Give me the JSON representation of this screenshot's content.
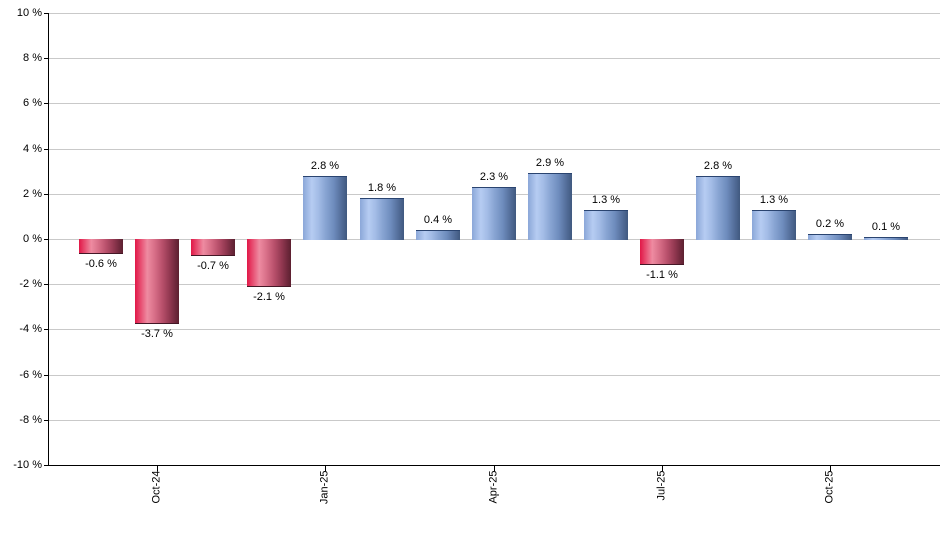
{
  "chart_data": {
    "type": "bar",
    "title": "",
    "unit": "%",
    "grid": true,
    "legend": false,
    "bars": [
      {
        "value": -0.6,
        "label": "-0.6 %"
      },
      {
        "value": -3.7,
        "label": "-3.7 %"
      },
      {
        "value": -0.7,
        "label": "-0.7 %"
      },
      {
        "value": -2.1,
        "label": "-2.1 %"
      },
      {
        "value": 2.8,
        "label": "2.8 %"
      },
      {
        "value": 1.8,
        "label": "1.8 %"
      },
      {
        "value": 0.4,
        "label": "0.4 %"
      },
      {
        "value": 2.3,
        "label": "2.3 %"
      },
      {
        "value": 2.9,
        "label": "2.9 %"
      },
      {
        "value": 1.3,
        "label": "1.3 %"
      },
      {
        "value": -1.1,
        "label": "-1.1 %"
      },
      {
        "value": 2.8,
        "label": "2.8 %"
      },
      {
        "value": 1.3,
        "label": "1.3 %"
      },
      {
        "value": 0.2,
        "label": "0.2 %"
      },
      {
        "value": 0.1,
        "label": "0.1 %"
      }
    ],
    "x_axis": {
      "ticks": [
        {
          "label": "Oct-24",
          "bar_index": 1
        },
        {
          "label": "Jan-25",
          "bar_index": 4
        },
        {
          "label": "Apr-25",
          "bar_index": 7
        },
        {
          "label": "Jul-25",
          "bar_index": 10
        },
        {
          "label": "Oct-25",
          "bar_index": 13
        }
      ]
    },
    "y_axis": {
      "ticks": [
        {
          "value": 10,
          "label": "10 %"
        },
        {
          "value": 8,
          "label": "8 %"
        },
        {
          "value": 6,
          "label": "6 %"
        },
        {
          "value": 4,
          "label": "4 %"
        },
        {
          "value": 2,
          "label": "2 %"
        },
        {
          "value": 0,
          "label": "0 %"
        },
        {
          "value": -2,
          "label": "-2 %"
        },
        {
          "value": -4,
          "label": "-4 %"
        },
        {
          "value": -6,
          "label": "-6 %"
        },
        {
          "value": -8,
          "label": "-8 %"
        },
        {
          "value": -10,
          "label": "-10 %"
        }
      ],
      "ylim": [
        -10,
        10
      ]
    },
    "colors": {
      "positive_bar_main": "#8aa6d4",
      "positive_bar_highlight": "#b6ccf2",
      "positive_bar_dark": "#40597f",
      "negative_bar_main": "#d76e87",
      "negative_bar_highlight": "#ee8ba1",
      "negative_bar_dark": "#5c2030",
      "gridline": "#c9c9c9",
      "axis": "#000000",
      "label_text": "#000000",
      "background": "#ffffff"
    }
  }
}
